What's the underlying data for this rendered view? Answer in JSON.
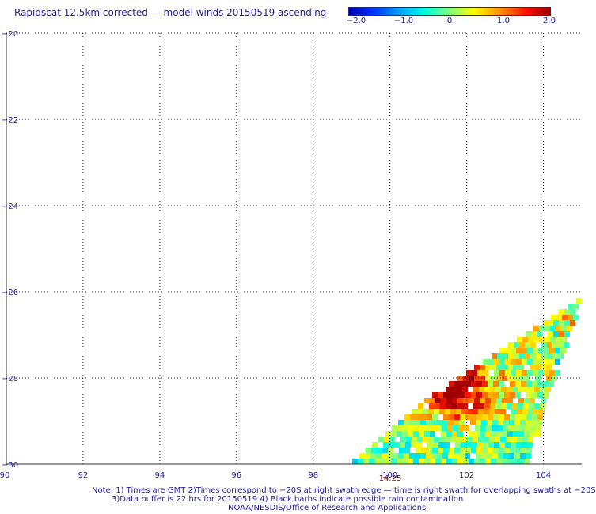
{
  "title": "Rapidscat 12.5km corrected — model winds 20150519 ascending",
  "colorbar": {
    "labels": [
      "−2.0",
      "−1.0",
      "0",
      "1.0",
      "2.0"
    ],
    "min": -2.0,
    "max": 2.0
  },
  "axes": {
    "x_ticks": [
      "90",
      "92",
      "94",
      "96",
      "98",
      "100",
      "102",
      "104"
    ],
    "y_ticks": [
      "−20",
      "−22",
      "−24",
      "−26",
      "−28",
      "−30"
    ],
    "x_range": [
      90,
      105
    ],
    "y_range": [
      -30,
      -20
    ],
    "grid": true
  },
  "time_label": "14:25",
  "notes": {
    "line1": "Note: 1) Times are GMT 2)Times correspond to −20S at right swath edge — time is right swath for overlapping swaths at −20S",
    "line2": "3)Data buffer is 22 hrs for 20150519 4) Black barbs indicate possible rain contamination",
    "line3": "NOAA/NESDIS/Office of Research and Applications"
  }
}
